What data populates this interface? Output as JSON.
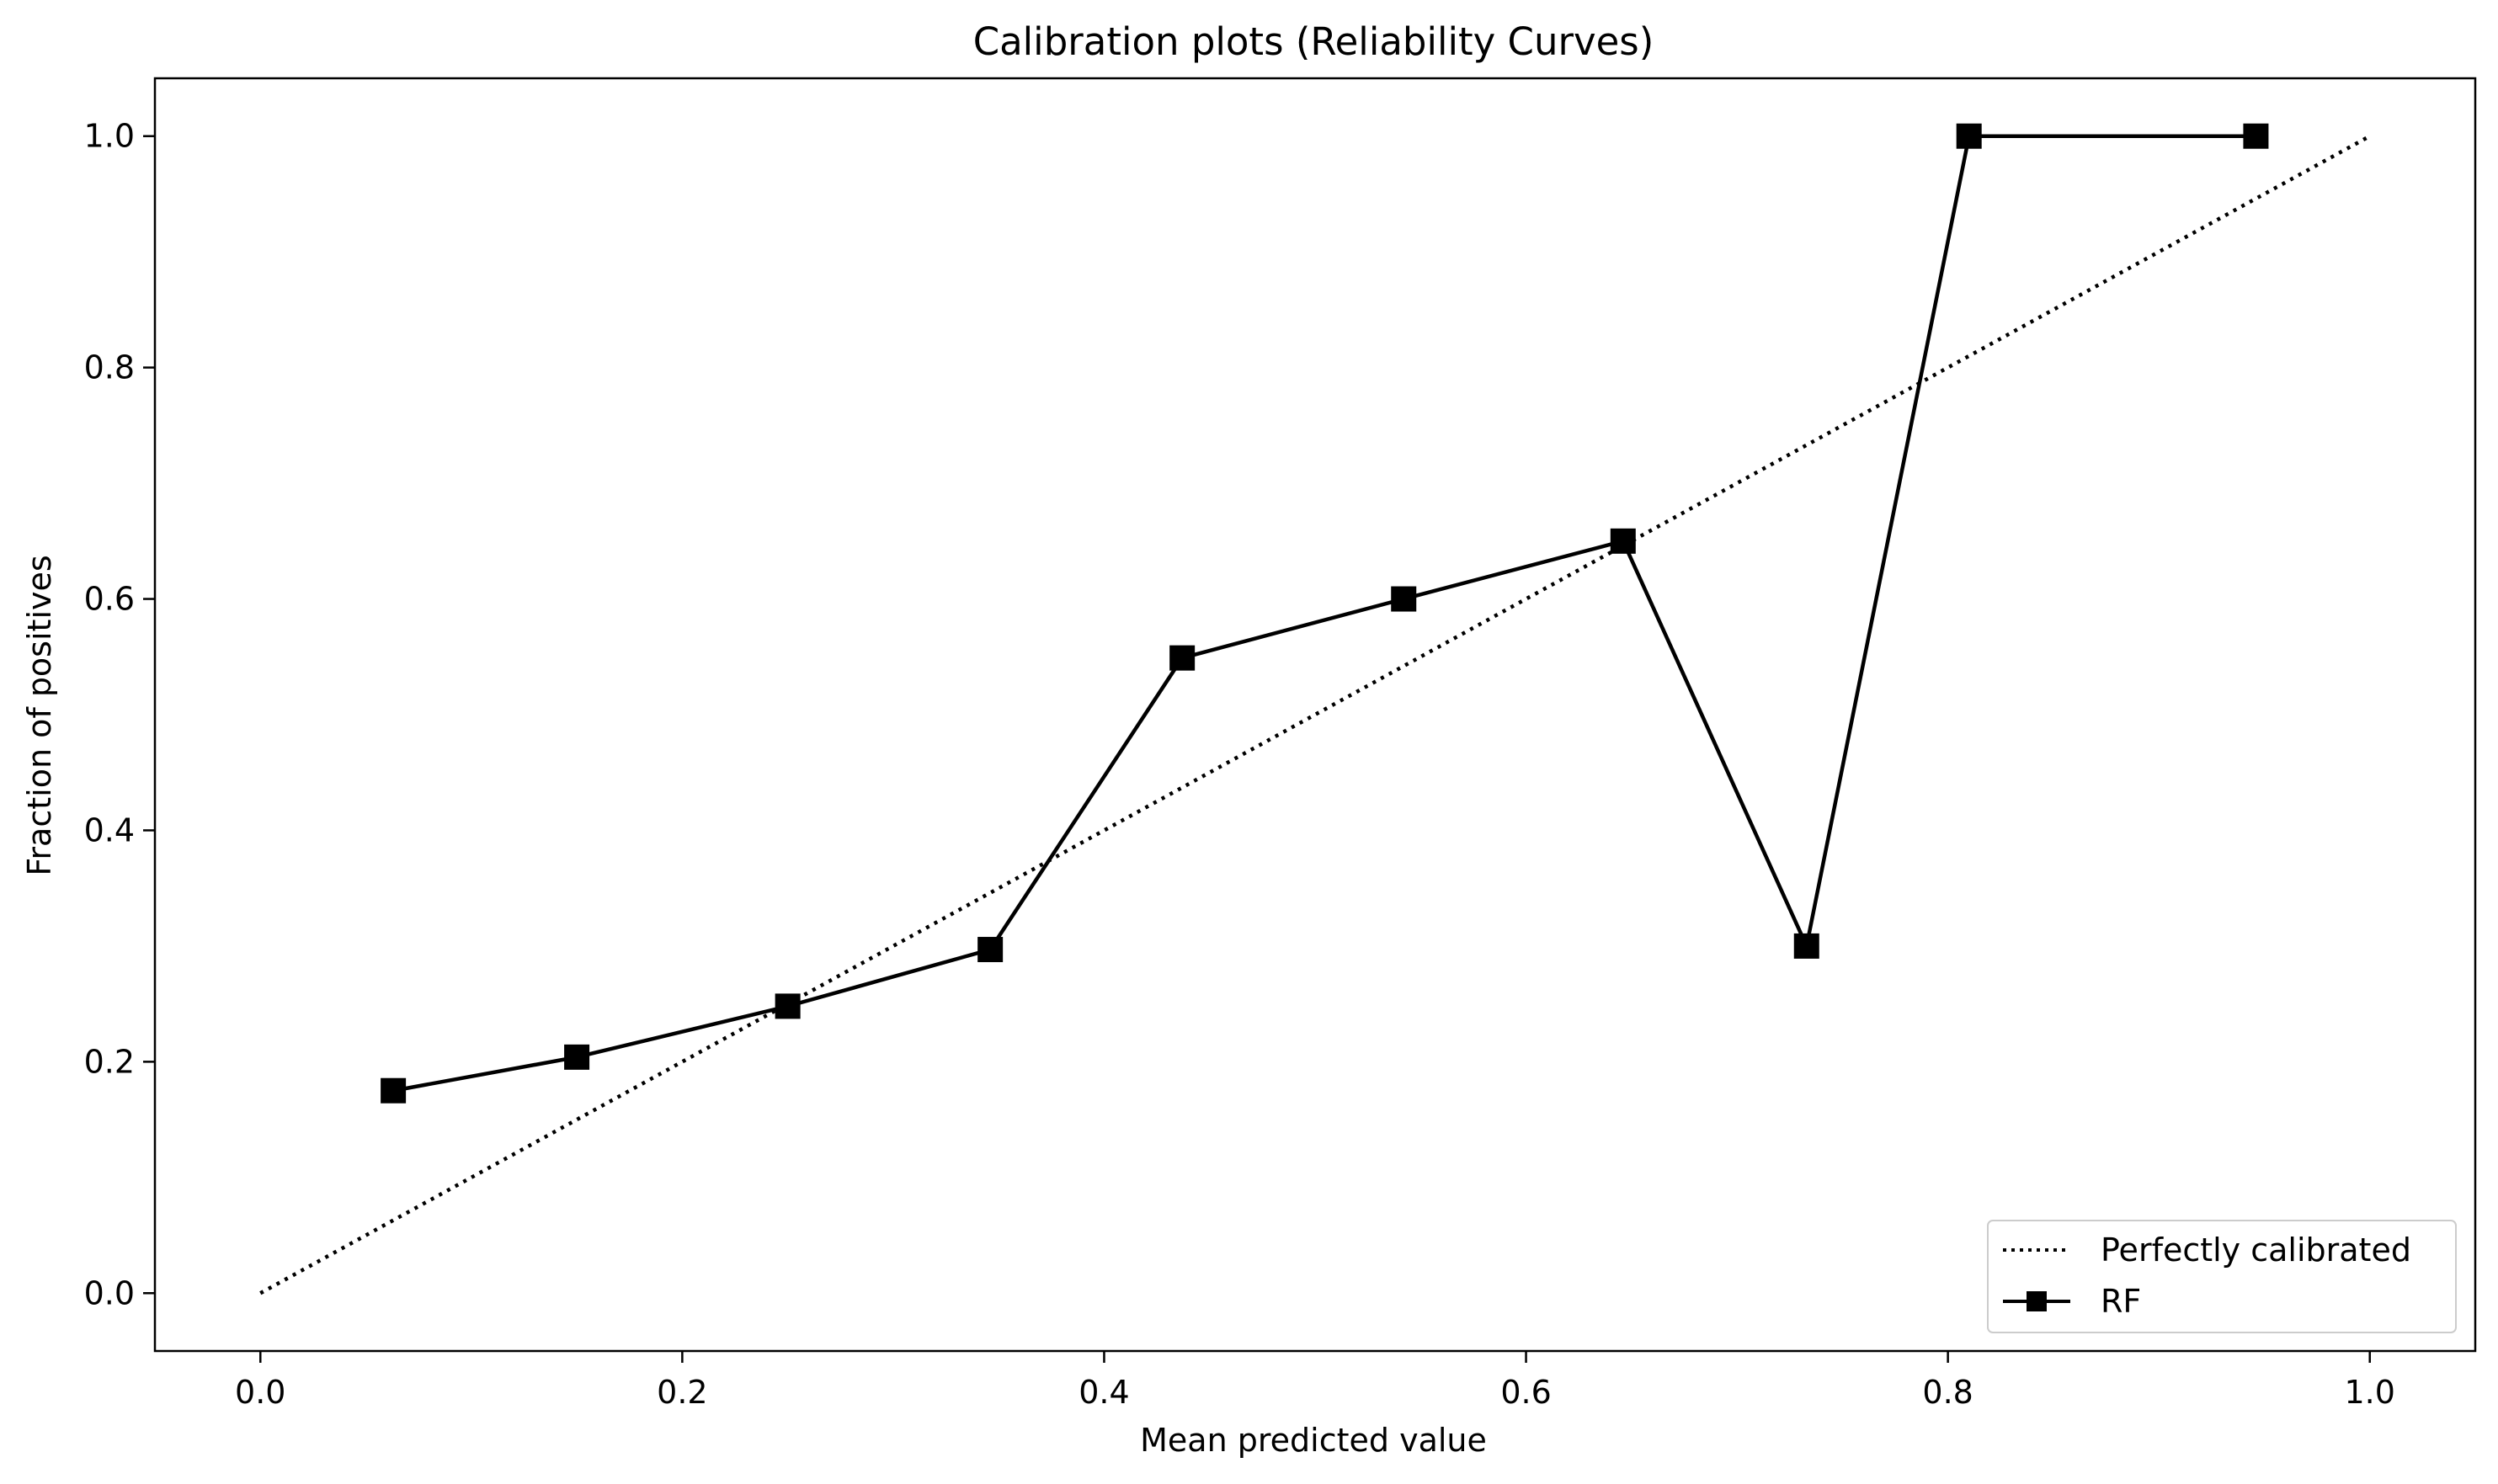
{
  "chart_data": {
    "type": "line",
    "title": "Calibration plots (Reliability Curves)",
    "xlabel": "Mean predicted value",
    "ylabel": "Fraction of positives",
    "xlim": [
      -0.05,
      1.05
    ],
    "ylim": [
      -0.05,
      1.05
    ],
    "xticks": [
      0.0,
      0.2,
      0.4,
      0.6,
      0.8,
      1.0
    ],
    "xtick_labels": [
      "0.0",
      "0.2",
      "0.4",
      "0.6",
      "0.8",
      "1.0"
    ],
    "yticks": [
      0.0,
      0.2,
      0.4,
      0.6,
      0.8,
      1.0
    ],
    "ytick_labels": [
      "0.0",
      "0.2",
      "0.4",
      "0.6",
      "0.8",
      "1.0"
    ],
    "grid": false,
    "legend_position": "bottom-right",
    "series": [
      {
        "name": "Perfectly calibrated",
        "style": "dotted",
        "color": "#000000",
        "x": [
          0.0,
          1.0
        ],
        "y": [
          0.0,
          1.0
        ]
      },
      {
        "name": "RF",
        "style": "solid",
        "marker": "square",
        "color": "#000000",
        "x": [
          0.063,
          0.15,
          0.25,
          0.346,
          0.437,
          0.542,
          0.646,
          0.733,
          0.81,
          0.946
        ],
        "y": [
          0.175,
          0.204,
          0.248,
          0.297,
          0.549,
          0.6,
          0.65,
          0.3,
          1.0,
          1.0
        ]
      }
    ]
  }
}
